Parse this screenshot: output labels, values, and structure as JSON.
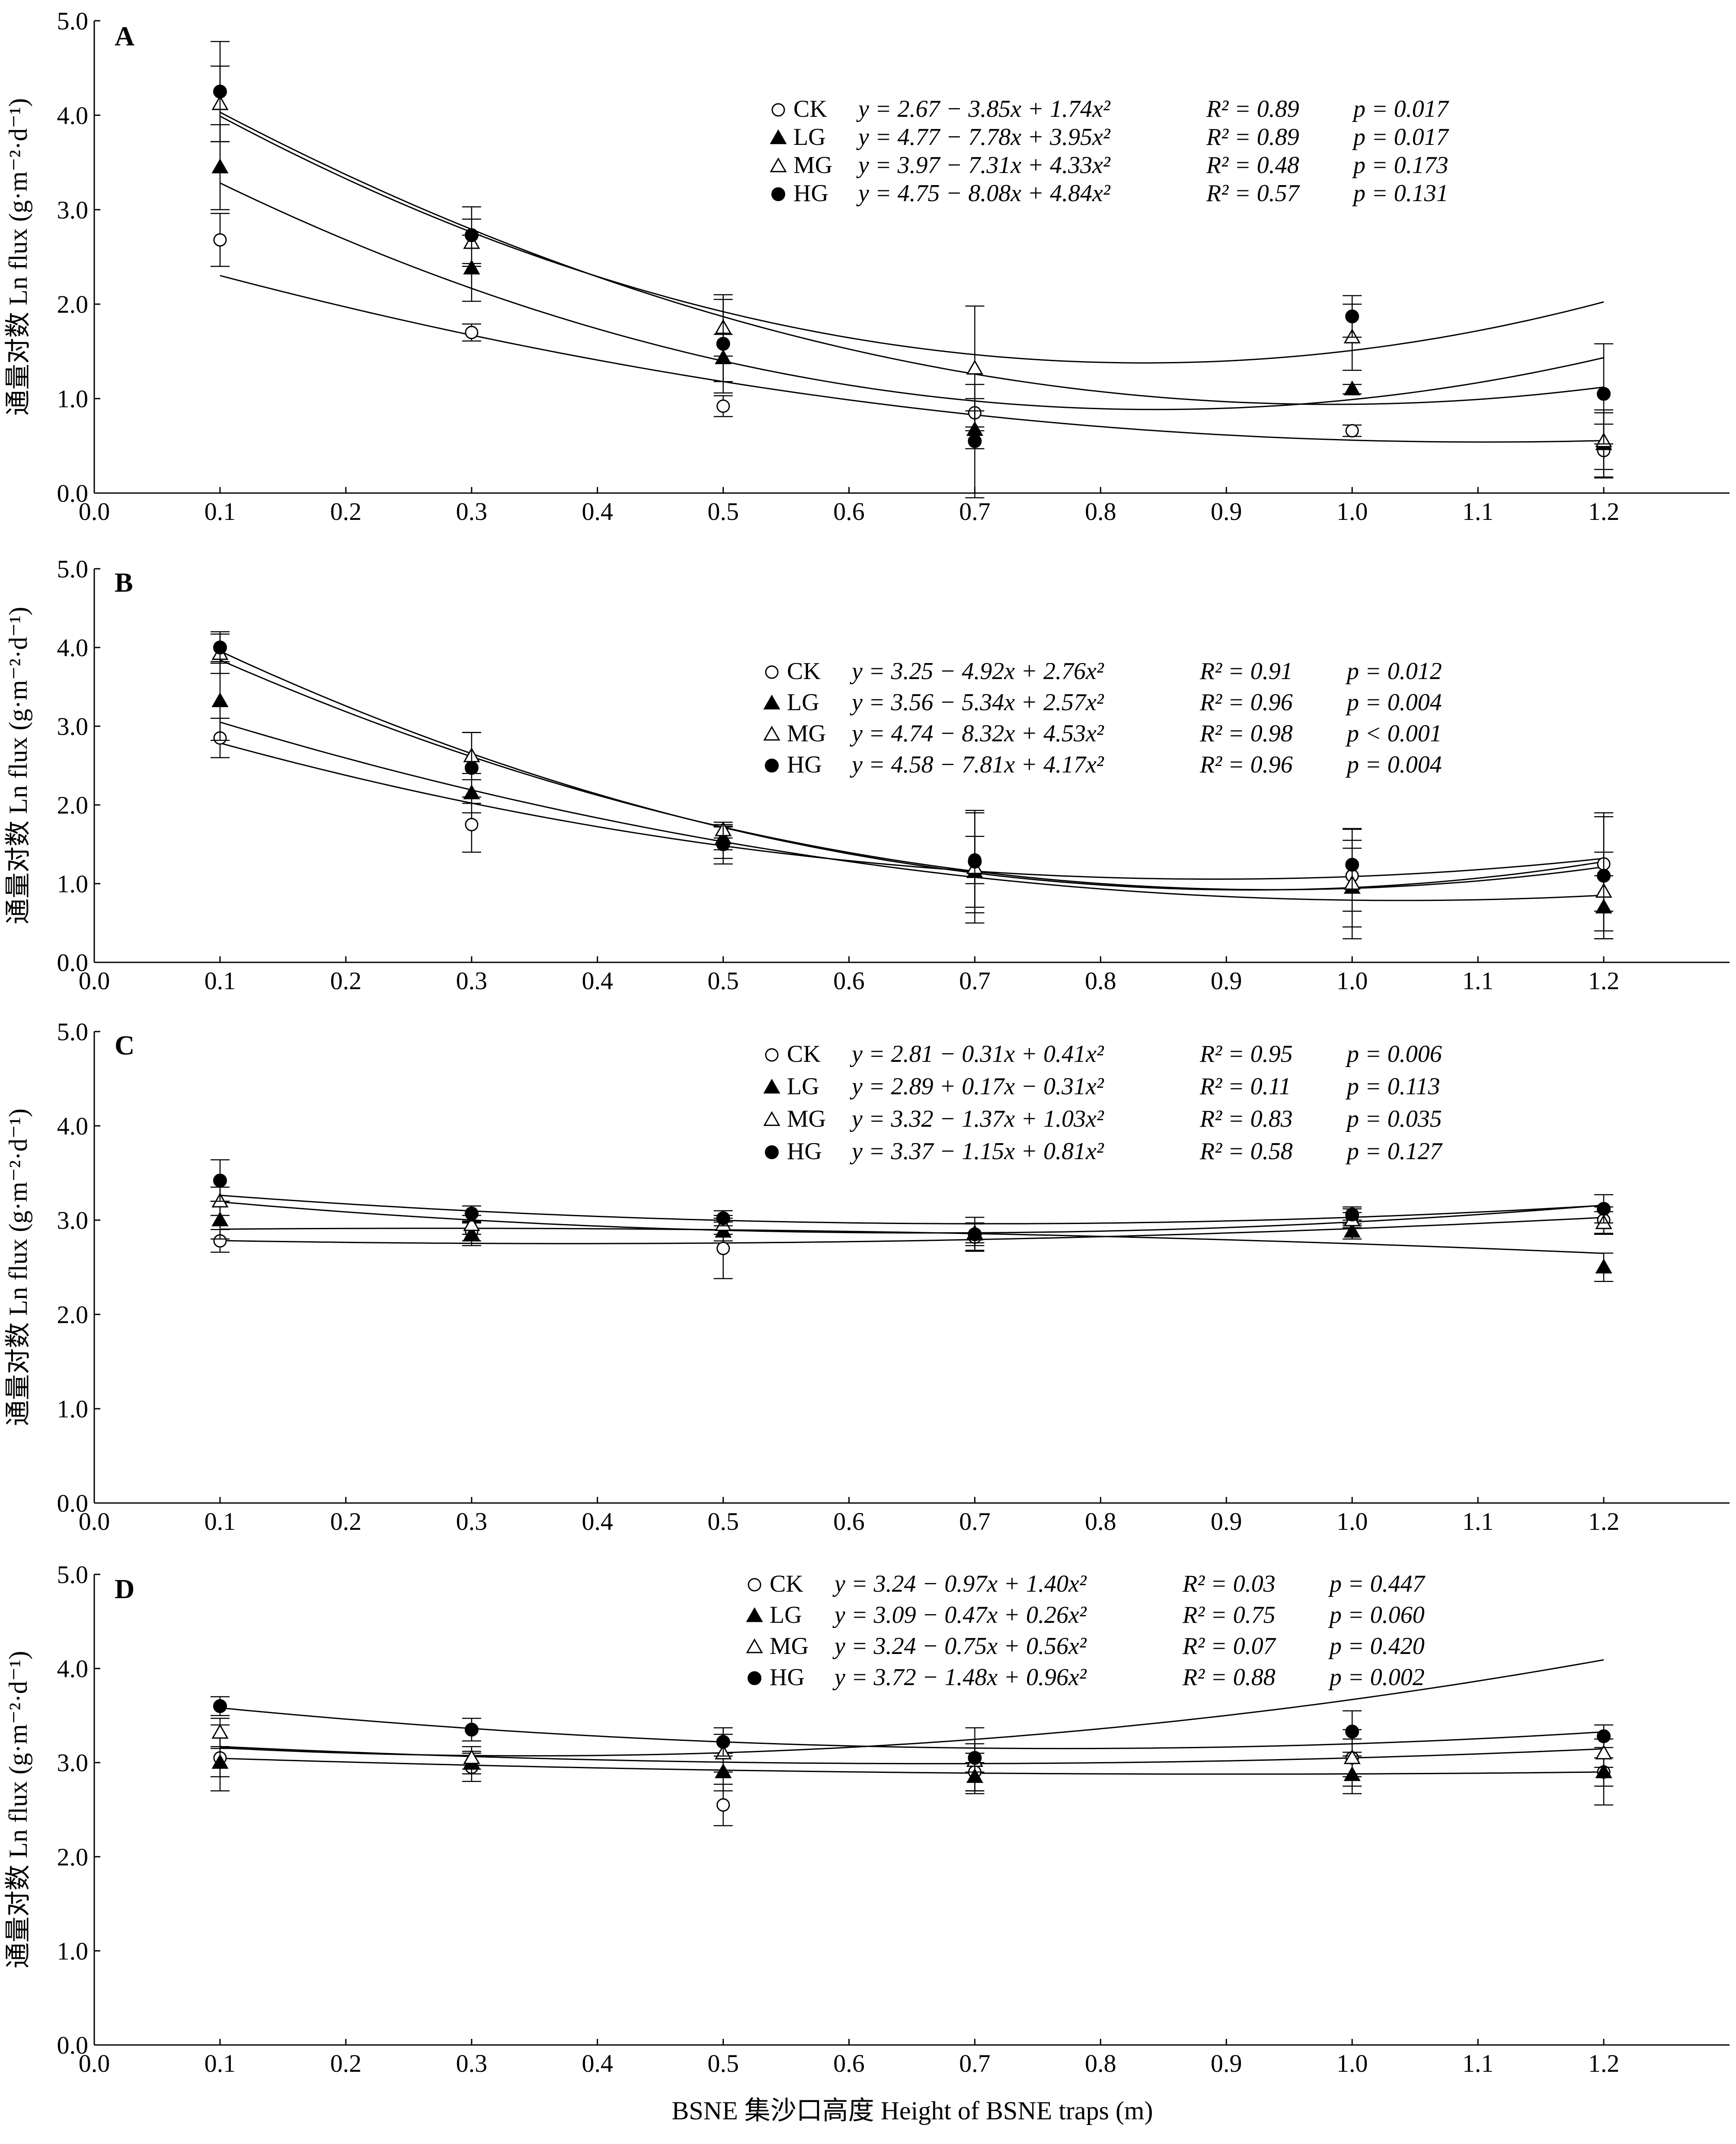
{
  "figure": {
    "xlabel": "BSNE 集沙口高度 Height of BSNE traps (m)"
  },
  "chart_data": [
    {
      "type": "scatter",
      "panel": "A",
      "ylabel": "通量对数 Ln flux (g·m⁻²·d⁻¹)",
      "xlim": [
        0.0,
        1.3
      ],
      "ylim": [
        0.0,
        5.0
      ],
      "x_ticks": [
        "0.0",
        "0.1",
        "0.2",
        "0.3",
        "0.4",
        "0.5",
        "0.6",
        "0.7",
        "0.8",
        "0.9",
        "1.0",
        "1.1",
        "1.2"
      ],
      "y_ticks": [
        "0.0",
        "1.0",
        "2.0",
        "3.0",
        "4.0",
        "5.0"
      ],
      "x": [
        0.1,
        0.3,
        0.5,
        0.7,
        1.0,
        1.2
      ],
      "series": [
        {
          "name": "CK",
          "marker": "open-circle",
          "values": [
            2.68,
            1.7,
            0.92,
            0.85,
            0.66,
            0.45
          ],
          "errors": [
            0.28,
            0.09,
            0.11,
            0.15,
            0.06,
            0.28
          ],
          "fit": [
            2.67,
            -3.85,
            1.74
          ],
          "eq": "y = 2.67 − 3.85x + 1.74x²",
          "r2": "R² = 0.89",
          "p": "p = 0.017"
        },
        {
          "name": "LG",
          "marker": "filled-triangle",
          "values": [
            3.45,
            2.38,
            1.43,
            0.67,
            1.1,
            0.52
          ],
          "errors": [
            0.45,
            0.35,
            0.25,
            0.2,
            0.05,
            0.36
          ],
          "fit": [
            4.77,
            -7.78,
            3.95
          ],
          "eq": "y = 4.77 − 7.78x + 3.95x²",
          "r2": "R² = 0.89",
          "p": "p = 0.017"
        },
        {
          "name": "MG",
          "marker": "open-triangle",
          "values": [
            4.12,
            2.65,
            1.75,
            1.32,
            1.65,
            0.55
          ],
          "errors": [
            0.4,
            0.25,
            0.3,
            0.66,
            0.35,
            0.3
          ],
          "fit": [
            3.97,
            -7.31,
            4.33
          ],
          "eq": "y = 3.97 − 7.31x + 4.33x²",
          "r2": "R² = 0.48",
          "p": "p = 0.173"
        },
        {
          "name": "HG",
          "marker": "filled-circle",
          "values": [
            4.25,
            2.73,
            1.58,
            0.55,
            1.87,
            1.05
          ],
          "errors": [
            0.53,
            0.3,
            0.52,
            0.6,
            0.22,
            0.53
          ],
          "fit": [
            4.75,
            -8.08,
            4.84
          ],
          "eq": "y = 4.75 − 8.08x + 4.84x²",
          "r2": "R² = 0.57",
          "p": "p = 0.131"
        }
      ]
    },
    {
      "type": "scatter",
      "panel": "B",
      "ylabel": "通量对数 Ln flux (g·m⁻²·d⁻¹)",
      "xlim": [
        0.0,
        1.3
      ],
      "ylim": [
        0.0,
        5.0
      ],
      "x_ticks": [
        "0.0",
        "0.1",
        "0.2",
        "0.3",
        "0.4",
        "0.5",
        "0.6",
        "0.7",
        "0.8",
        "0.9",
        "1.0",
        "1.1",
        "1.2"
      ],
      "y_ticks": [
        "0.0",
        "1.0",
        "2.0",
        "3.0",
        "4.0",
        "5.0"
      ],
      "x": [
        0.1,
        0.3,
        0.5,
        0.7,
        1.0,
        1.2
      ],
      "series": [
        {
          "name": "CK",
          "marker": "open-circle",
          "values": [
            2.85,
            1.75,
            1.52,
            1.3,
            1.1,
            1.25
          ],
          "errors": [
            0.25,
            0.35,
            0.2,
            0.3,
            0.45,
            0.6
          ],
          "fit": [
            3.25,
            -4.92,
            2.76
          ],
          "eq": "y = 3.25 − 4.92x + 2.76x²",
          "r2": "R² = 0.91",
          "p": "p = 0.012"
        },
        {
          "name": "LG",
          "marker": "filled-triangle",
          "values": [
            3.32,
            2.15,
            1.58,
            1.15,
            0.95,
            0.7
          ],
          "errors": [
            0.5,
            0.25,
            0.15,
            0.45,
            0.5,
            0.4
          ],
          "fit": [
            3.56,
            -5.34,
            2.57
          ],
          "eq": "y = 3.56 − 5.34x + 2.57x²",
          "r2": "R² = 0.96",
          "p": "p = 0.004"
        },
        {
          "name": "MG",
          "marker": "open-triangle",
          "values": [
            3.92,
            2.62,
            1.68,
            1.2,
            1.0,
            0.9
          ],
          "errors": [
            0.25,
            0.3,
            0.1,
            0.7,
            0.7,
            0.5
          ],
          "fit": [
            4.74,
            -8.32,
            4.53
          ],
          "eq": "y = 4.74 − 8.32x + 4.53x²",
          "r2": "R² = 0.98",
          "p": "p < 0.001"
        },
        {
          "name": "HG",
          "marker": "filled-circle",
          "values": [
            4.0,
            2.47,
            1.5,
            1.28,
            1.24,
            1.1
          ],
          "errors": [
            0.2,
            0.45,
            0.25,
            0.65,
            0.45,
            0.8
          ],
          "fit": [
            4.58,
            -7.81,
            4.17
          ],
          "eq": "y = 4.58 − 7.81x + 4.17x²",
          "r2": "R² = 0.96",
          "p": "p = 0.004"
        }
      ]
    },
    {
      "type": "scatter",
      "panel": "C",
      "ylabel": "通量对数 Ln flux (g·m⁻²·d⁻¹)",
      "xlim": [
        0.0,
        1.3
      ],
      "ylim": [
        0.0,
        5.0
      ],
      "x_ticks": [
        "0.0",
        "0.1",
        "0.2",
        "0.3",
        "0.4",
        "0.5",
        "0.6",
        "0.7",
        "0.8",
        "0.9",
        "1.0",
        "1.1",
        "1.2"
      ],
      "y_ticks": [
        "0.0",
        "1.0",
        "2.0",
        "3.0",
        "4.0",
        "5.0"
      ],
      "x": [
        0.1,
        0.3,
        0.5,
        0.7,
        1.0,
        1.2
      ],
      "series": [
        {
          "name": "CK",
          "marker": "open-circle",
          "values": [
            2.78,
            2.88,
            2.7,
            2.82,
            3.04,
            3.0
          ],
          "errors": [
            0.12,
            0.1,
            0.32,
            0.14,
            0.1,
            0.14
          ],
          "fit": [
            2.81,
            -0.31,
            0.41
          ],
          "eq": "y = 2.81 − 0.31x + 0.41x²",
          "r2": "R² = 0.95",
          "p": "p = 0.006"
        },
        {
          "name": "LG",
          "marker": "filled-triangle",
          "values": [
            3.0,
            2.85,
            2.88,
            2.85,
            2.88,
            2.5
          ],
          "errors": [
            0.2,
            0.12,
            0.1,
            0.12,
            0.08,
            0.15
          ],
          "fit": [
            2.89,
            0.17,
            -0.31
          ],
          "eq": "y = 2.89 + 0.17x − 0.31x²",
          "r2": "R² = 0.11",
          "p": "p = 0.113"
        },
        {
          "name": "MG",
          "marker": "open-triangle",
          "values": [
            3.2,
            2.95,
            2.95,
            2.86,
            3.0,
            2.97
          ],
          "errors": [
            0.15,
            0.1,
            0.1,
            0.1,
            0.08,
            0.12
          ],
          "fit": [
            3.32,
            -1.37,
            1.03
          ],
          "eq": "y = 3.32 − 1.37x + 1.03x²",
          "r2": "R² = 0.83",
          "p": "p = 0.035"
        },
        {
          "name": "HG",
          "marker": "filled-circle",
          "values": [
            3.42,
            3.07,
            3.02,
            2.85,
            3.06,
            3.12
          ],
          "errors": [
            0.22,
            0.08,
            0.08,
            0.18,
            0.06,
            0.15
          ],
          "fit": [
            3.37,
            -1.15,
            0.81
          ],
          "eq": "y = 3.37 − 1.15x + 0.81x²",
          "r2": "R² = 0.58",
          "p": "p = 0.127"
        }
      ]
    },
    {
      "type": "scatter",
      "panel": "D",
      "ylabel": "通量对数 Ln flux (g·m⁻²·d⁻¹)",
      "xlim": [
        0.0,
        1.3
      ],
      "ylim": [
        0.0,
        5.0
      ],
      "x_ticks": [
        "0.0",
        "0.1",
        "0.2",
        "0.3",
        "0.4",
        "0.5",
        "0.6",
        "0.7",
        "0.8",
        "0.9",
        "1.0",
        "1.1",
        "1.2"
      ],
      "y_ticks": [
        "0.0",
        "1.0",
        "2.0",
        "3.0",
        "4.0",
        "5.0"
      ],
      "x": [
        0.1,
        0.3,
        0.5,
        0.7,
        1.0,
        1.2
      ],
      "series": [
        {
          "name": "CK",
          "marker": "open-circle",
          "values": [
            3.05,
            2.95,
            2.55,
            2.9,
            3.05,
            2.9
          ],
          "errors": [
            0.35,
            0.15,
            0.22,
            0.2,
            0.3,
            0.35
          ],
          "fit": [
            3.24,
            -0.97,
            1.4
          ],
          "eq": "y = 3.24 − 0.97x + 1.40x²",
          "r2": "R² = 0.03",
          "p": "p = 0.447"
        },
        {
          "name": "LG",
          "marker": "filled-triangle",
          "values": [
            3.0,
            3.0,
            2.9,
            2.85,
            2.87,
            2.9
          ],
          "errors": [
            0.15,
            0.12,
            0.2,
            0.15,
            0.2,
            0.15
          ],
          "fit": [
            3.09,
            -0.47,
            0.26
          ],
          "eq": "y = 3.09 − 0.47x + 0.26x²",
          "r2": "R² = 0.75",
          "p": "p = 0.060"
        },
        {
          "name": "MG",
          "marker": "open-triangle",
          "values": [
            3.32,
            3.05,
            3.1,
            3.02,
            3.05,
            3.1
          ],
          "errors": [
            0.15,
            0.12,
            0.2,
            0.35,
            0.2,
            0.15
          ],
          "fit": [
            3.24,
            -0.75,
            0.56
          ],
          "eq": "y = 3.24 − 0.75x + 0.56x²",
          "r2": "R² = 0.07",
          "p": "p = 0.420"
        },
        {
          "name": "HG",
          "marker": "filled-circle",
          "values": [
            3.6,
            3.35,
            3.22,
            3.05,
            3.33,
            3.28
          ],
          "errors": [
            0.1,
            0.12,
            0.15,
            0.15,
            0.22,
            0.12
          ],
          "fit": [
            3.72,
            -1.48,
            0.96
          ],
          "eq": "y = 3.72 − 1.48x + 0.96x²",
          "r2": "R² = 0.88",
          "p": "p = 0.002"
        }
      ]
    }
  ]
}
